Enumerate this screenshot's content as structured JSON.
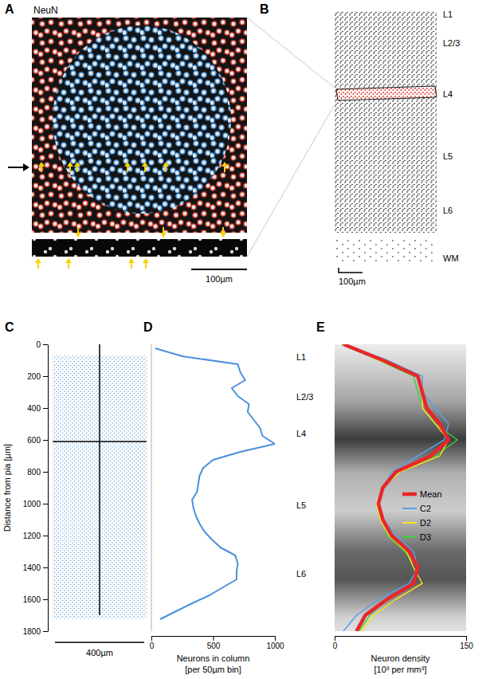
{
  "image_panels": [
    {
      "label": "A",
      "stain": "NeuN",
      "scale_bar": "100µm"
    },
    {
      "label": "B",
      "layers": [
        "L1",
        "L2/3",
        "L4",
        "L5",
        "L6",
        "WM"
      ],
      "scale_bar": "100µm"
    }
  ],
  "chart_data": [
    {
      "type": "scatter",
      "title": "C",
      "ylabel": "Distance from pia [µm]",
      "ylim": [
        0,
        1800
      ],
      "yticks": [
        0,
        200,
        400,
        600,
        800,
        1000,
        1200,
        1400,
        1600,
        1800
      ],
      "tick_labels": "y",
      "scale_bar": "400µm",
      "color": "#5b9bd5",
      "cloud": {
        "width": 420,
        "depth": [
          70,
          1720
        ]
      },
      "lines": {
        "axis_depth": [
          0,
          1700
        ],
        "slice_depth": 610
      }
    },
    {
      "type": "line",
      "title": "D",
      "orientation": "horizontal",
      "x": [
        25,
        75,
        125,
        175,
        225,
        275,
        325,
        375,
        425,
        475,
        525,
        575,
        625,
        675,
        725,
        775,
        825,
        875,
        925,
        975,
        1025,
        1075,
        1125,
        1175,
        1225,
        1275,
        1325,
        1375,
        1425,
        1475,
        1525,
        1575,
        1625,
        1675,
        1725
      ],
      "values": [
        30,
        250,
        700,
        720,
        760,
        650,
        700,
        790,
        780,
        830,
        880,
        900,
        1000,
        720,
        500,
        420,
        390,
        380,
        370,
        330,
        340,
        360,
        390,
        430,
        490,
        560,
        680,
        700,
        690,
        690,
        580,
        470,
        330,
        200,
        70
      ],
      "xlim": [
        0,
        1800
      ],
      "ylim": [
        0,
        1000
      ],
      "yticks": [
        0,
        500,
        1000
      ],
      "ylabel": [
        "Neurons in column",
        "[per 50µm bin]"
      ],
      "tick_labels": "y",
      "color": "#4a8fdc",
      "annotations": [
        {
          "text": "L1",
          "x": 80
        },
        {
          "text": "L2/3",
          "x": 330
        },
        {
          "text": "L4",
          "x": 560
        },
        {
          "text": "L5",
          "x": 1010
        },
        {
          "text": "L6",
          "x": 1440
        }
      ]
    },
    {
      "type": "line",
      "title": "E",
      "orientation": "horizontal",
      "x": [
        0,
        100,
        200,
        300,
        400,
        500,
        600,
        700,
        800,
        900,
        1000,
        1100,
        1200,
        1300,
        1400,
        1500,
        1600,
        1700,
        1800
      ],
      "series": [
        {
          "name": "Mean",
          "color": "#e8262a",
          "values": [
            10,
            55,
            95,
            100,
            105,
            120,
            130,
            110,
            70,
            55,
            50,
            55,
            65,
            85,
            95,
            90,
            60,
            35,
            25
          ]
        },
        {
          "name": "C2",
          "color": "#5aa0e6",
          "values": [
            12,
            60,
            100,
            100,
            115,
            130,
            125,
            95,
            65,
            55,
            50,
            55,
            70,
            90,
            95,
            85,
            50,
            25,
            10
          ]
        },
        {
          "name": "D2",
          "color": "#f2e31b",
          "values": [
            10,
            50,
            95,
            100,
            100,
            115,
            130,
            120,
            75,
            55,
            48,
            52,
            62,
            82,
            90,
            100,
            70,
            45,
            30
          ]
        },
        {
          "name": "D3",
          "color": "#3fd13f",
          "values": [
            8,
            50,
            90,
            95,
            100,
            115,
            140,
            115,
            70,
            55,
            50,
            55,
            60,
            80,
            95,
            90,
            60,
            40,
            28
          ]
        }
      ],
      "xlim": [
        0,
        1800
      ],
      "ylim": [
        0,
        150
      ],
      "yticks": [
        0,
        150
      ],
      "ylabel": [
        "Neuron density",
        "[10³ per mm³]"
      ],
      "tick_labels": "y",
      "legend": "right"
    }
  ]
}
